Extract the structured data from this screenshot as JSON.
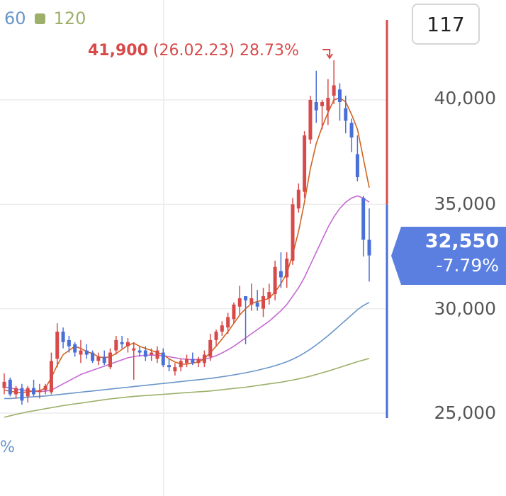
{
  "legend": {
    "ma60": "60",
    "ma120": "120"
  },
  "period": "117",
  "annotation": {
    "price": "41,900",
    "date": "(26.02.23)",
    "change": "28.73%"
  },
  "current": {
    "price": "32,550",
    "change": "-7.79%"
  },
  "fragment": "%",
  "colors": {
    "up": "#d84a4a",
    "down": "#4a6fd6",
    "ma5": "#d2641e",
    "ma20": "#c46ad2",
    "ma60": "#6a95c8",
    "ma120": "#9cb06a",
    "tag": "#5b7fe0"
  },
  "chart_data": {
    "type": "candlestick",
    "y_axis": {
      "ticks": [
        "25,000",
        "30,000",
        "35,000",
        "40,000"
      ],
      "ylim": [
        24900,
        43300
      ]
    },
    "candles": [
      {
        "o": 26200,
        "h": 26900,
        "l": 25900,
        "c": 26500
      },
      {
        "o": 26600,
        "h": 26700,
        "l": 25800,
        "c": 25900
      },
      {
        "o": 25900,
        "h": 26300,
        "l": 25700,
        "c": 26200
      },
      {
        "o": 26200,
        "h": 26400,
        "l": 25400,
        "c": 25600
      },
      {
        "o": 25800,
        "h": 26300,
        "l": 25500,
        "c": 26200
      },
      {
        "o": 26200,
        "h": 26600,
        "l": 25800,
        "c": 25900
      },
      {
        "o": 26000,
        "h": 26400,
        "l": 25700,
        "c": 26100
      },
      {
        "o": 26100,
        "h": 26400,
        "l": 25900,
        "c": 26300
      },
      {
        "o": 26000,
        "h": 27900,
        "l": 25900,
        "c": 27500
      },
      {
        "o": 27600,
        "h": 29300,
        "l": 27200,
        "c": 28900
      },
      {
        "o": 28900,
        "h": 29100,
        "l": 28100,
        "c": 28400
      },
      {
        "o": 28500,
        "h": 28700,
        "l": 27900,
        "c": 28200
      },
      {
        "o": 28300,
        "h": 28400,
        "l": 27700,
        "c": 27900
      },
      {
        "o": 27800,
        "h": 28500,
        "l": 27400,
        "c": 28000
      },
      {
        "o": 28000,
        "h": 28300,
        "l": 27600,
        "c": 27800
      },
      {
        "o": 27900,
        "h": 28000,
        "l": 27400,
        "c": 27500
      },
      {
        "o": 27500,
        "h": 27900,
        "l": 27300,
        "c": 27700
      },
      {
        "o": 27700,
        "h": 28000,
        "l": 27300,
        "c": 27400
      },
      {
        "o": 27200,
        "h": 28100,
        "l": 27100,
        "c": 27900
      },
      {
        "o": 28000,
        "h": 28700,
        "l": 27800,
        "c": 28500
      },
      {
        "o": 28400,
        "h": 28700,
        "l": 28100,
        "c": 28300
      },
      {
        "o": 28200,
        "h": 28600,
        "l": 27900,
        "c": 28400
      },
      {
        "o": 28000,
        "h": 28400,
        "l": 26600,
        "c": 28100
      },
      {
        "o": 28000,
        "h": 28200,
        "l": 27700,
        "c": 27900
      },
      {
        "o": 28000,
        "h": 28200,
        "l": 27500,
        "c": 27700
      },
      {
        "o": 27800,
        "h": 28100,
        "l": 27500,
        "c": 27900
      },
      {
        "o": 27600,
        "h": 28200,
        "l": 27400,
        "c": 28000
      },
      {
        "o": 27900,
        "h": 28100,
        "l": 27200,
        "c": 27300
      },
      {
        "o": 27300,
        "h": 27600,
        "l": 27000,
        "c": 27200
      },
      {
        "o": 27000,
        "h": 27400,
        "l": 26800,
        "c": 27200
      },
      {
        "o": 27200,
        "h": 27600,
        "l": 27000,
        "c": 27500
      },
      {
        "o": 27400,
        "h": 27800,
        "l": 27200,
        "c": 27600
      },
      {
        "o": 27600,
        "h": 27900,
        "l": 27300,
        "c": 27400
      },
      {
        "o": 27400,
        "h": 27700,
        "l": 27200,
        "c": 27600
      },
      {
        "o": 27400,
        "h": 28000,
        "l": 27200,
        "c": 27800
      },
      {
        "o": 27700,
        "h": 28800,
        "l": 27500,
        "c": 28500
      },
      {
        "o": 28500,
        "h": 29000,
        "l": 28200,
        "c": 28900
      },
      {
        "o": 28900,
        "h": 29400,
        "l": 28700,
        "c": 29200
      },
      {
        "o": 29100,
        "h": 29800,
        "l": 28800,
        "c": 29600
      },
      {
        "o": 29500,
        "h": 30300,
        "l": 29300,
        "c": 30200
      },
      {
        "o": 30100,
        "h": 31100,
        "l": 29700,
        "c": 30500
      },
      {
        "o": 30600,
        "h": 30600,
        "l": 28300,
        "c": 30400
      },
      {
        "o": 30200,
        "h": 31200,
        "l": 29900,
        "c": 30500
      },
      {
        "o": 30300,
        "h": 30900,
        "l": 29900,
        "c": 30100
      },
      {
        "o": 30000,
        "h": 31000,
        "l": 29600,
        "c": 30600
      },
      {
        "o": 30500,
        "h": 31200,
        "l": 30200,
        "c": 30800
      },
      {
        "o": 30700,
        "h": 32300,
        "l": 30400,
        "c": 32000
      },
      {
        "o": 31800,
        "h": 32700,
        "l": 31000,
        "c": 31500
      },
      {
        "o": 31500,
        "h": 32700,
        "l": 31000,
        "c": 32400
      },
      {
        "o": 32300,
        "h": 35300,
        "l": 32100,
        "c": 35000
      },
      {
        "o": 34800,
        "h": 36000,
        "l": 34600,
        "c": 35700
      },
      {
        "o": 35600,
        "h": 38500,
        "l": 35300,
        "c": 38300
      },
      {
        "o": 38100,
        "h": 40200,
        "l": 37900,
        "c": 40000
      },
      {
        "o": 39900,
        "h": 41400,
        "l": 38900,
        "c": 39500
      },
      {
        "o": 39700,
        "h": 40000,
        "l": 38600,
        "c": 39900
      },
      {
        "o": 39500,
        "h": 41000,
        "l": 38800,
        "c": 40100
      },
      {
        "o": 40200,
        "h": 41900,
        "l": 39800,
        "c": 40700
      },
      {
        "o": 40500,
        "h": 40800,
        "l": 39000,
        "c": 39900
      },
      {
        "o": 39600,
        "h": 40200,
        "l": 38400,
        "c": 39000
      },
      {
        "o": 38900,
        "h": 39100,
        "l": 37500,
        "c": 38200
      },
      {
        "o": 37400,
        "h": 38300,
        "l": 36100,
        "c": 36300
      },
      {
        "o": 35300,
        "h": 35400,
        "l": 32500,
        "c": 33300
      },
      {
        "o": 33300,
        "h": 34800,
        "l": 31300,
        "c": 32550
      }
    ],
    "ma5": [
      26100,
      26050,
      26000,
      25980,
      26020,
      26050,
      26070,
      26200,
      26700,
      27300,
      27800,
      28000,
      28200,
      28100,
      27950,
      27850,
      27700,
      27650,
      27700,
      27850,
      28050,
      28250,
      28350,
      28200,
      28100,
      28000,
      27900,
      27800,
      27600,
      27450,
      27350,
      27350,
      27400,
      27450,
      27600,
      27900,
      28200,
      28550,
      28900,
      29300,
      29700,
      30000,
      30250,
      30350,
      30400,
      30500,
      30800,
      31200,
      31700,
      32600,
      33700,
      35100,
      36700,
      37900,
      38700,
      39400,
      40000,
      40100,
      39900,
      39300,
      38600,
      37200,
      35800
    ],
    "ma20": [
      26250,
      26200,
      26150,
      26100,
      26080,
      26050,
      26030,
      26050,
      26100,
      26250,
      26400,
      26550,
      26700,
      26850,
      26950,
      27050,
      27150,
      27250,
      27350,
      27450,
      27550,
      27650,
      27700,
      27750,
      27770,
      27780,
      27770,
      27750,
      27700,
      27650,
      27600,
      27580,
      27560,
      27560,
      27580,
      27650,
      27750,
      27880,
      28030,
      28200,
      28400,
      28600,
      28800,
      29000,
      29200,
      29400,
      29650,
      29900,
      30200,
      30600,
      31000,
      31500,
      32100,
      32700,
      33300,
      33900,
      34400,
      34800,
      35100,
      35300,
      35400,
      35300,
      35100
    ],
    "ma60": [
      25700,
      25700,
      25720,
      25740,
      25760,
      25780,
      25800,
      25820,
      25850,
      25880,
      25910,
      25940,
      25970,
      26000,
      26030,
      26060,
      26090,
      26120,
      26150,
      26180,
      26210,
      26240,
      26270,
      26300,
      26330,
      26360,
      26390,
      26420,
      26450,
      26480,
      26510,
      26540,
      26570,
      26600,
      26630,
      26660,
      26700,
      26740,
      26780,
      26830,
      26880,
      26930,
      26990,
      27050,
      27120,
      27190,
      27270,
      27360,
      27460,
      27580,
      27720,
      27880,
      28060,
      28260,
      28480,
      28710,
      28950,
      29200,
      29450,
      29700,
      29950,
      30150,
      30300
    ],
    "ma120": [
      24800,
      24870,
      24940,
      25000,
      25060,
      25110,
      25160,
      25210,
      25260,
      25310,
      25360,
      25400,
      25440,
      25480,
      25520,
      25560,
      25600,
      25640,
      25680,
      25710,
      25740,
      25770,
      25800,
      25820,
      25840,
      25860,
      25880,
      25900,
      25920,
      25940,
      25960,
      25980,
      26000,
      26020,
      26040,
      26060,
      26090,
      26120,
      26150,
      26180,
      26210,
      26240,
      26280,
      26320,
      26360,
      26400,
      26440,
      26480,
      26530,
      26580,
      26640,
      26700,
      26770,
      26850,
      26930,
      27010,
      27100,
      27190,
      27280,
      27370,
      27460,
      27540,
      27620
    ]
  }
}
